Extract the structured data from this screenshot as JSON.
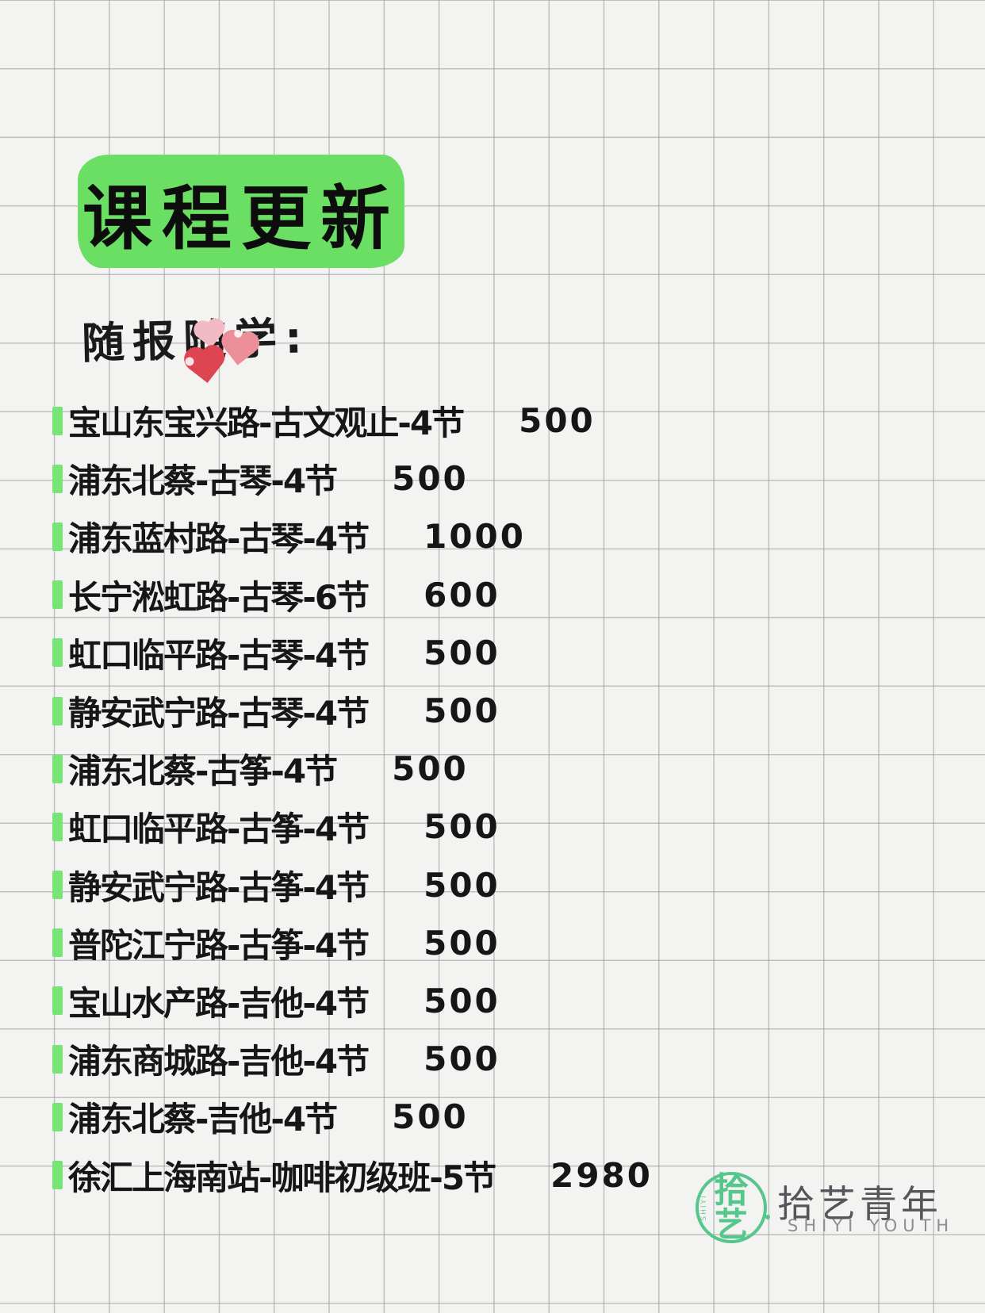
{
  "header": {
    "title": "课程更新",
    "subtitle": "随报随学:"
  },
  "courses": [
    {
      "name": "宝山东宝兴路-古文观止-4节",
      "price": "500"
    },
    {
      "name": "浦东北蔡-古琴-4节",
      "price": "500"
    },
    {
      "name": "浦东蓝村路-古琴-4节",
      "price": "1000"
    },
    {
      "name": "长宁淞虹路-古琴-6节",
      "price": "600"
    },
    {
      "name": "虹口临平路-古琴-4节",
      "price": "500"
    },
    {
      "name": "静安武宁路-古琴-4节",
      "price": "500"
    },
    {
      "name": "浦东北蔡-古筝-4节",
      "price": "500"
    },
    {
      "name": "虹口临平路-古筝-4节",
      "price": "500"
    },
    {
      "name": "静安武宁路-古筝-4节",
      "price": "500"
    },
    {
      "name": "普陀江宁路-古筝-4节",
      "price": "500"
    },
    {
      "name": "宝山水产路-吉他-4节",
      "price": "500"
    },
    {
      "name": "浦东商城路-吉他-4节",
      "price": "500"
    },
    {
      "name": "浦东北蔡-吉他-4节",
      "price": "500"
    },
    {
      "name": "徐汇上海南站-咖啡初级班-5节",
      "price": "2980"
    }
  ],
  "logo": {
    "badge_top": "拾",
    "badge_bottom": "艺",
    "badge_side_text": "SHIYI",
    "name_cn": "拾艺青年",
    "name_en": "SHIYI YOUTH"
  },
  "decorations": {
    "hearts": [
      "heart-light-pink-icon",
      "heart-pink-icon",
      "heart-red-icon"
    ]
  },
  "colors": {
    "paper": "#f3f3f1",
    "grid_line": "#b9b9b9",
    "banner_green": "#6bdf63",
    "bullet_green": "#77e574",
    "logo_green": "#55c78c",
    "text_black": "#161616",
    "heart_red": "#de4553",
    "heart_pink": "#ec8f99",
    "heart_light_pink": "#f2bac4",
    "logo_text_gray": "#55555a",
    "logo_sub_gray": "#8e8e91"
  }
}
